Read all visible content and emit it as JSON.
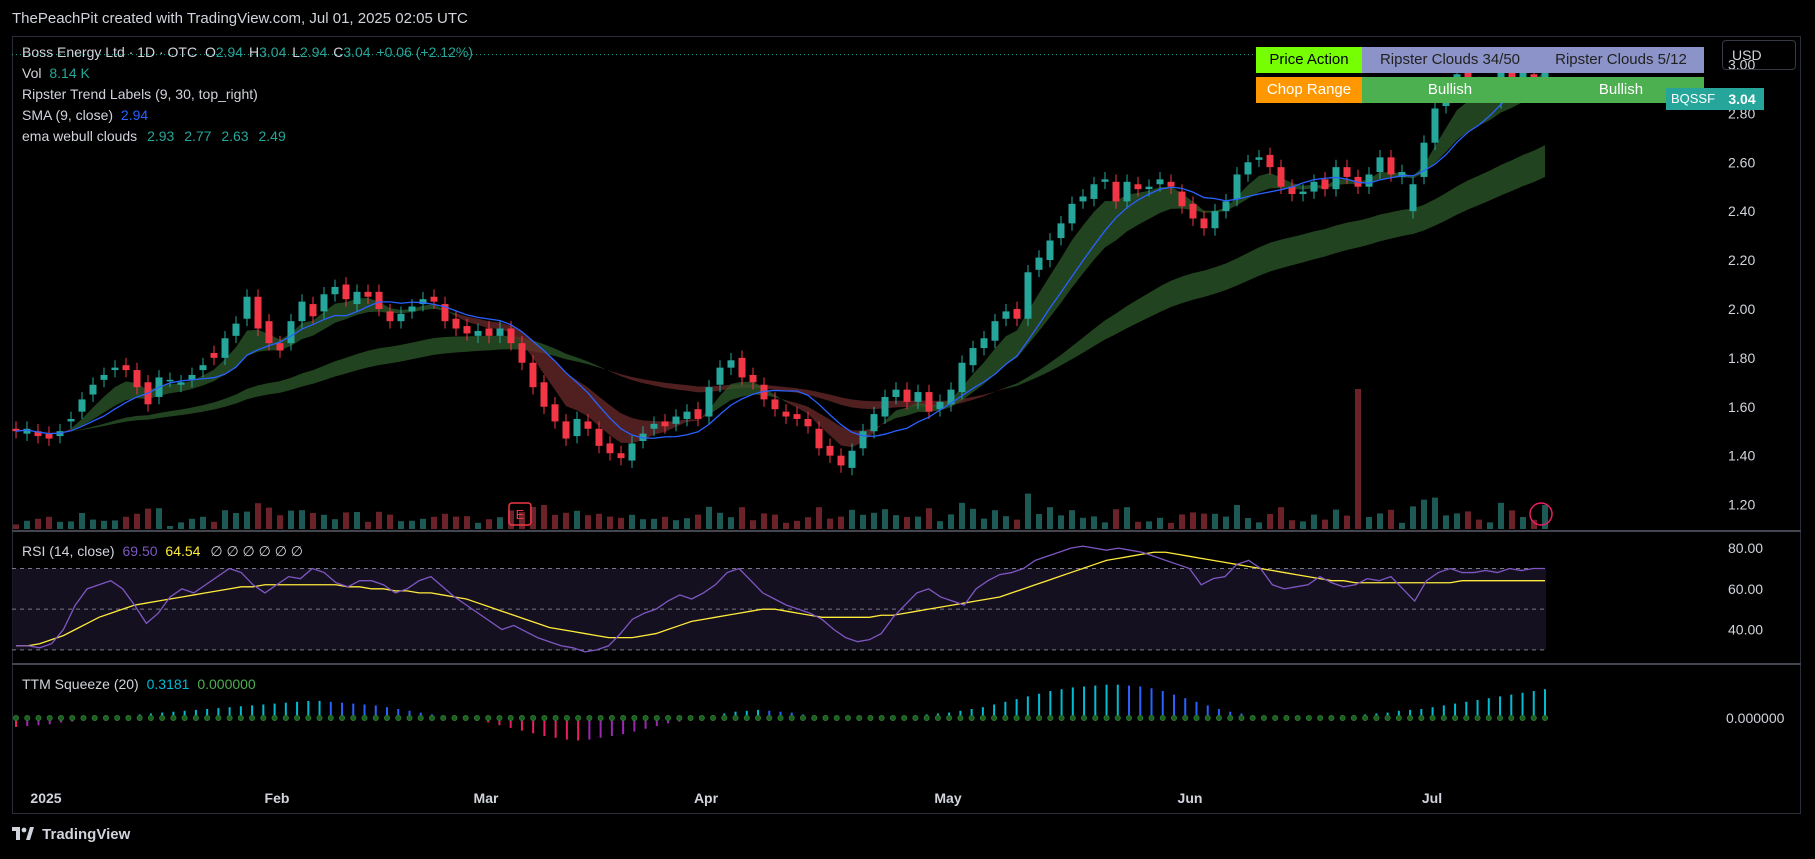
{
  "header": {
    "attribution": "ThePeachPit created with TradingView.com, Jul 01, 2025 02:05 UTC"
  },
  "footer": {
    "brand": "TradingView"
  },
  "currency_button": "USD",
  "legend": {
    "symbol": "Boss Energy Ltd · 1D · OTC",
    "o_label": "O",
    "o_val": "2.94",
    "h_label": "H",
    "h_val": "3.04",
    "l_label": "L",
    "l_val": "2.94",
    "c_label": "C",
    "c_val": "3.04",
    "change": "+0.06 (+2.12%)",
    "vol_label": "Vol",
    "vol_val": "8.14 K",
    "ripster_labels": "Ripster Trend Labels (9, 30, top_right)",
    "sma_label": "SMA (9, close)",
    "sma_val": "2.94",
    "ema_label": "ema webull clouds",
    "ema_vals": [
      "2.93",
      "2.77",
      "2.63",
      "2.49"
    ]
  },
  "trend_table": {
    "row1": [
      "Price Action",
      "Ripster Clouds 34/50",
      "Ripster Clouds 5/12"
    ],
    "row2": [
      "Chop Range",
      "Bullish",
      "Bullish"
    ],
    "colors": {
      "price_action": "#76ff03",
      "chop": "#ff9800",
      "bull": "#4caf50",
      "clouds": "#8b93c8"
    }
  },
  "price_tag": {
    "symbol": "BQSSF",
    "value": "3.04"
  },
  "rsi_legend": {
    "label": "RSI (14, close)",
    "val1": "69.50",
    "val2": "64.54",
    "extra": "∅ ∅ ∅ ∅ ∅ ∅"
  },
  "ttm_legend": {
    "label": "TTM Squeeze (20)",
    "val1": "0.3181",
    "val2": "0.000000"
  },
  "colors": {
    "up": "#26a69a",
    "down": "#f23645",
    "sma": "#2962ff",
    "rsi": "#7e57c2",
    "rsi_ma": "#ffeb3b"
  },
  "chart_data": [
    {
      "type": "candlestick",
      "title": "Boss Energy Ltd · 1D · OTC",
      "y_axis_ticks": [
        "3.00",
        "2.80",
        "2.60",
        "2.40",
        "2.20",
        "2.00",
        "1.80",
        "1.60",
        "1.40",
        "1.20"
      ],
      "ylim": [
        1.1,
        3.1
      ],
      "x_axis_ticks": [
        "2025",
        "Feb",
        "Mar",
        "Apr",
        "May",
        "Jun",
        "Jul"
      ],
      "close": [
        1.5,
        1.51,
        1.48,
        1.47,
        1.5,
        1.55,
        1.63,
        1.69,
        1.73,
        1.76,
        1.75,
        1.68,
        1.61,
        1.72,
        1.71,
        1.7,
        1.73,
        1.77,
        1.8,
        1.88,
        1.94,
        2.05,
        1.92,
        1.86,
        1.83,
        1.95,
        2.03,
        1.97,
        2.06,
        2.09,
        2.04,
        2.07,
        2.05,
        2.0,
        1.95,
        1.98,
        2.01,
        2.04,
        2.03,
        1.95,
        1.92,
        1.9,
        1.91,
        1.89,
        1.92,
        1.86,
        1.78,
        1.68,
        1.6,
        1.54,
        1.47,
        1.55,
        1.51,
        1.44,
        1.41,
        1.39,
        1.45,
        1.49,
        1.53,
        1.52,
        1.56,
        1.58,
        1.55,
        1.68,
        1.76,
        1.79,
        1.72,
        1.7,
        1.63,
        1.59,
        1.56,
        1.55,
        1.52,
        1.43,
        1.4,
        1.36,
        1.42,
        1.5,
        1.57,
        1.64,
        1.67,
        1.62,
        1.66,
        1.58,
        1.62,
        1.67,
        1.78,
        1.84,
        1.88,
        1.95,
        1.99,
        1.96,
        2.15,
        2.21,
        2.28,
        2.35,
        2.43,
        2.46,
        2.51,
        2.53,
        2.44,
        2.52,
        2.49,
        2.5,
        2.53,
        2.5,
        2.42,
        2.37,
        2.33,
        2.4,
        2.44,
        2.55,
        2.6,
        2.62,
        2.58,
        2.5,
        2.47,
        2.48,
        2.52,
        2.49,
        2.58,
        2.54,
        2.5,
        2.55,
        2.62,
        2.55,
        2.56,
        2.51,
        2.68,
        2.82,
        2.89,
        2.96,
        2.92,
        2.88,
        2.9,
        2.97,
        2.93,
        2.98,
        2.94,
        3.04
      ],
      "open": [
        1.51,
        1.49,
        1.5,
        1.49,
        1.48,
        1.54,
        1.58,
        1.65,
        1.71,
        1.75,
        1.77,
        1.75,
        1.7,
        1.64,
        1.71,
        1.69,
        1.71,
        1.75,
        1.82,
        1.8,
        1.89,
        1.96,
        2.05,
        1.95,
        1.86,
        1.86,
        1.95,
        2.02,
        1.99,
        2.06,
        2.1,
        2.02,
        2.07,
        2.07,
        1.99,
        1.95,
        1.99,
        2.02,
        2.05,
        2.02,
        1.96,
        1.93,
        1.89,
        1.92,
        1.89,
        1.92,
        1.86,
        1.78,
        1.7,
        1.61,
        1.54,
        1.48,
        1.54,
        1.51,
        1.45,
        1.41,
        1.38,
        1.46,
        1.51,
        1.54,
        1.53,
        1.55,
        1.59,
        1.56,
        1.69,
        1.76,
        1.8,
        1.73,
        1.69,
        1.63,
        1.58,
        1.57,
        1.55,
        1.51,
        1.44,
        1.4,
        1.35,
        1.43,
        1.5,
        1.56,
        1.64,
        1.67,
        1.62,
        1.66,
        1.59,
        1.61,
        1.66,
        1.77,
        1.84,
        1.87,
        1.96,
        2.0,
        1.96,
        2.16,
        2.2,
        2.29,
        2.35,
        2.44,
        2.45,
        2.52,
        2.52,
        2.44,
        2.51,
        2.49,
        2.51,
        2.52,
        2.48,
        2.43,
        2.37,
        2.33,
        2.4,
        2.45,
        2.55,
        2.61,
        2.63,
        2.58,
        2.5,
        2.47,
        2.48,
        2.53,
        2.49,
        2.58,
        2.54,
        2.5,
        2.56,
        2.62,
        2.54,
        2.4,
        2.54,
        2.68,
        2.83,
        2.9,
        2.98,
        2.92,
        2.89,
        2.85,
        2.99,
        2.93,
        2.96,
        2.94
      ],
      "volume_peak_note": "volume bars along bottom of price pane, one large spike in June",
      "sma_9": "blue line following closes",
      "clouds": "ripster/ema clouds shaded green (bullish) or red (bearish)"
    },
    {
      "type": "line",
      "title": "RSI (14, close)",
      "y_axis_ticks": [
        "80.00",
        "60.00",
        "40.00"
      ],
      "ylim": [
        25,
        85
      ],
      "series": [
        {
          "name": "RSI",
          "values": [
            32,
            32,
            31,
            33,
            40,
            52,
            60,
            62,
            64,
            60,
            52,
            43,
            48,
            56,
            60,
            58,
            62,
            66,
            70,
            68,
            62,
            58,
            62,
            66,
            65,
            70,
            68,
            63,
            61,
            64,
            64,
            62,
            58,
            60,
            64,
            66,
            61,
            56,
            52,
            48,
            44,
            40,
            42,
            39,
            36,
            34,
            32,
            31,
            29,
            30,
            32,
            38,
            45,
            48,
            50,
            54,
            57,
            55,
            58,
            62,
            68,
            70,
            64,
            58,
            55,
            52,
            50,
            48,
            45,
            40,
            36,
            34,
            35,
            38,
            46,
            52,
            58,
            60,
            56,
            54,
            52,
            60,
            64,
            67,
            68,
            70,
            74,
            76,
            78,
            80,
            81,
            80,
            79,
            80,
            79,
            78,
            76,
            74,
            72,
            70,
            62,
            65,
            66,
            72,
            74,
            70,
            62,
            60,
            61,
            62,
            66,
            63,
            61,
            62,
            65,
            64,
            66,
            60,
            54,
            64,
            68,
            70,
            68,
            68,
            69,
            68,
            70,
            69,
            70,
            70
          ]
        },
        {
          "name": "RSI MA",
          "values": [
            32,
            32,
            33,
            35,
            37,
            40,
            43,
            46,
            48,
            50,
            52,
            53,
            54,
            55,
            56,
            57,
            58,
            59,
            60,
            61,
            61,
            62,
            62,
            62,
            62,
            62,
            62,
            62,
            61,
            61,
            60,
            60,
            59,
            59,
            58,
            58,
            57,
            56,
            55,
            53,
            51,
            49,
            47,
            45,
            43,
            41,
            40,
            39,
            38,
            37,
            36,
            36,
            36,
            37,
            38,
            40,
            42,
            44,
            45,
            46,
            47,
            48,
            49,
            50,
            50,
            49,
            48,
            47,
            46,
            46,
            46,
            46,
            46,
            47,
            47,
            48,
            49,
            50,
            51,
            52,
            53,
            54,
            55,
            56,
            58,
            60,
            62,
            64,
            66,
            68,
            70,
            72,
            74,
            75,
            76,
            77,
            78,
            78,
            77,
            76,
            75,
            74,
            73,
            72,
            71,
            70,
            69,
            68,
            67,
            66,
            65,
            64,
            64,
            63,
            63,
            63,
            63,
            63,
            63,
            63,
            63,
            63,
            64,
            64,
            64,
            64,
            64,
            64,
            64,
            64
          ]
        }
      ]
    },
    {
      "type": "bar",
      "title": "TTM Squeeze (20)",
      "y_axis_ticks": [
        "0.000000"
      ],
      "values": [
        -0.1,
        -0.09,
        -0.08,
        -0.07,
        -0.05,
        -0.04,
        -0.02,
        -0.01,
        0.01,
        0.02,
        0.03,
        0.04,
        0.05,
        0.06,
        0.07,
        0.08,
        0.09,
        0.1,
        0.11,
        0.12,
        0.13,
        0.14,
        0.15,
        0.16,
        0.17,
        0.18,
        0.19,
        0.19,
        0.18,
        0.17,
        0.16,
        0.15,
        0.14,
        0.12,
        0.1,
        0.08,
        0.06,
        0.04,
        0.02,
        0.01,
        -0.01,
        -0.03,
        -0.05,
        -0.08,
        -0.11,
        -0.14,
        -0.17,
        -0.2,
        -0.22,
        -0.24,
        -0.25,
        -0.24,
        -0.22,
        -0.2,
        -0.18,
        -0.15,
        -0.12,
        -0.09,
        -0.06,
        -0.04,
        -0.02,
        0.01,
        0.03,
        0.05,
        0.07,
        0.08,
        0.09,
        0.08,
        0.07,
        0.06,
        0.04,
        0.03,
        0.02,
        0.01,
        0.01,
        -0.01,
        -0.02,
        -0.01,
        0.01,
        0.02,
        0.03,
        0.04,
        0.05,
        0.06,
        0.08,
        0.1,
        0.12,
        0.15,
        0.18,
        0.21,
        0.24,
        0.27,
        0.3,
        0.32,
        0.34,
        0.35,
        0.36,
        0.37,
        0.37,
        0.36,
        0.35,
        0.33,
        0.3,
        0.26,
        0.22,
        0.18,
        0.14,
        0.1,
        0.07,
        0.05,
        0.03,
        0.02,
        0.01,
        0.01,
        0.02,
        0.02,
        0.01,
        0.01,
        0.02,
        0.03,
        0.04,
        0.05,
        0.06,
        0.08,
        0.09,
        0.1,
        0.12,
        0.14,
        0.16,
        0.18,
        0.2,
        0.22,
        0.24,
        0.26,
        0.28,
        0.3,
        0.32
      ]
    }
  ]
}
